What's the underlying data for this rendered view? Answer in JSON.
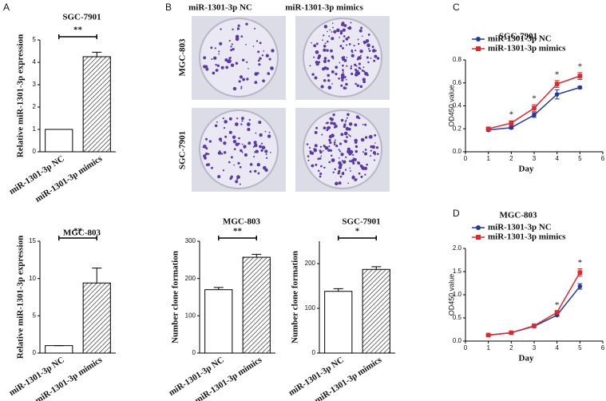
{
  "panel_labels": [
    "A",
    "B",
    "C",
    "D"
  ],
  "image_grid": {
    "columns": [
      "miR-1301-3p NC",
      "miR-1301-3p mimics"
    ],
    "rows": [
      "MGC-803",
      "SGC-7901"
    ]
  },
  "chart_data": [
    {
      "type": "bar",
      "title": "SGC-7901",
      "y_label": "Relative miR-1301-3p expression",
      "categories": [
        "miR-1301-3p NC",
        "miR-1301-3p mimics"
      ],
      "values": [
        1,
        4.25
      ],
      "errors": [
        0,
        0.2
      ],
      "ylim": [
        0,
        5
      ],
      "yticks": [
        0,
        1,
        2,
        3,
        4,
        5
      ],
      "significance": "**"
    },
    {
      "type": "bar",
      "title": "MGC-803",
      "y_label": "Relative miR-1301-3p expression",
      "categories": [
        "miR-1301-3p NC",
        "miR-1301-3p mimics"
      ],
      "values": [
        1,
        9.4
      ],
      "errors": [
        0,
        2
      ],
      "ylim": [
        0,
        15
      ],
      "yticks": [
        0,
        5,
        10,
        15
      ],
      "significance": "**"
    },
    {
      "type": "bar",
      "title": "MGC-803",
      "y_label": "Number clone formation",
      "categories": [
        "miR-1301-3p NC",
        "miR-1301-3p mimics"
      ],
      "values": [
        170,
        257
      ],
      "errors": [
        6,
        8
      ],
      "ylim": [
        0,
        300
      ],
      "yticks": [
        0,
        100,
        200,
        300
      ],
      "significance": "**"
    },
    {
      "type": "bar",
      "title": "SGC-7901",
      "y_label": "Number clone formation",
      "categories": [
        "miR-1301-3p NC",
        "miR-1301-3p mimics"
      ],
      "values": [
        138,
        187
      ],
      "errors": [
        6,
        6
      ],
      "ylim": [
        0,
        250
      ],
      "yticks": [
        0,
        100,
        200
      ],
      "significance": "*"
    },
    {
      "type": "line",
      "title": "SGC-7901",
      "x_label": "Day",
      "y_label": "OD450 value",
      "x": [
        1,
        2,
        3,
        4,
        5
      ],
      "series": [
        {
          "name": "miR-1301-3p NC",
          "color": "#27379a",
          "marker": "circle",
          "values": [
            0.19,
            0.21,
            0.32,
            0.5,
            0.56
          ],
          "errors": [
            0.01,
            0.01,
            0.02,
            0.04,
            0.01
          ]
        },
        {
          "name": "miR-1301-3p mimics",
          "color": "#e4262b",
          "marker": "square",
          "values": [
            0.2,
            0.25,
            0.38,
            0.59,
            0.66
          ],
          "errors": [
            0.01,
            0.02,
            0.03,
            0.03,
            0.03
          ]
        }
      ],
      "xlim": [
        0,
        6
      ],
      "xticks": [
        0,
        1,
        2,
        3,
        4,
        5,
        6
      ],
      "ylim": [
        0,
        0.8
      ],
      "yticks": [
        {
          "value": 0,
          "label": "0.0"
        },
        0.2,
        0.4,
        0.6,
        0.8
      ],
      "legend": "upper left",
      "annotations": [
        {
          "x": 2,
          "text": "*"
        },
        {
          "x": 3,
          "text": "*"
        },
        {
          "x": 4,
          "text": "*"
        },
        {
          "x": 5,
          "text": "*"
        }
      ]
    },
    {
      "type": "line",
      "title": "MGC-803",
      "x_label": "Day",
      "y_label": "OD450 value",
      "x": [
        1,
        2,
        3,
        4,
        5
      ],
      "series": [
        {
          "name": "miR-1301-3p NC",
          "color": "#27379a",
          "marker": "circle",
          "values": [
            0.13,
            0.18,
            0.32,
            0.56,
            1.18
          ],
          "errors": [
            0.01,
            0.01,
            0.02,
            0.02,
            0.06
          ]
        },
        {
          "name": "miR-1301-3p mimics",
          "color": "#e4262b",
          "marker": "square",
          "values": [
            0.13,
            0.18,
            0.33,
            0.62,
            1.48
          ],
          "errors": [
            0.01,
            0.01,
            0.03,
            0.03,
            0.08
          ]
        }
      ],
      "xlim": [
        0,
        6
      ],
      "xticks": [
        0,
        1,
        2,
        3,
        4,
        5,
        6
      ],
      "ylim": [
        0,
        2
      ],
      "yticks": [
        {
          "value": 0,
          "label": "0.0"
        },
        0.5,
        {
          "value": 1,
          "label": "1.0"
        },
        1.5,
        {
          "value": 2,
          "label": "2.0"
        }
      ],
      "legend": "upper left",
      "annotations": [
        {
          "x": 4,
          "text": "*"
        },
        {
          "x": 5,
          "text": "*"
        }
      ]
    }
  ]
}
